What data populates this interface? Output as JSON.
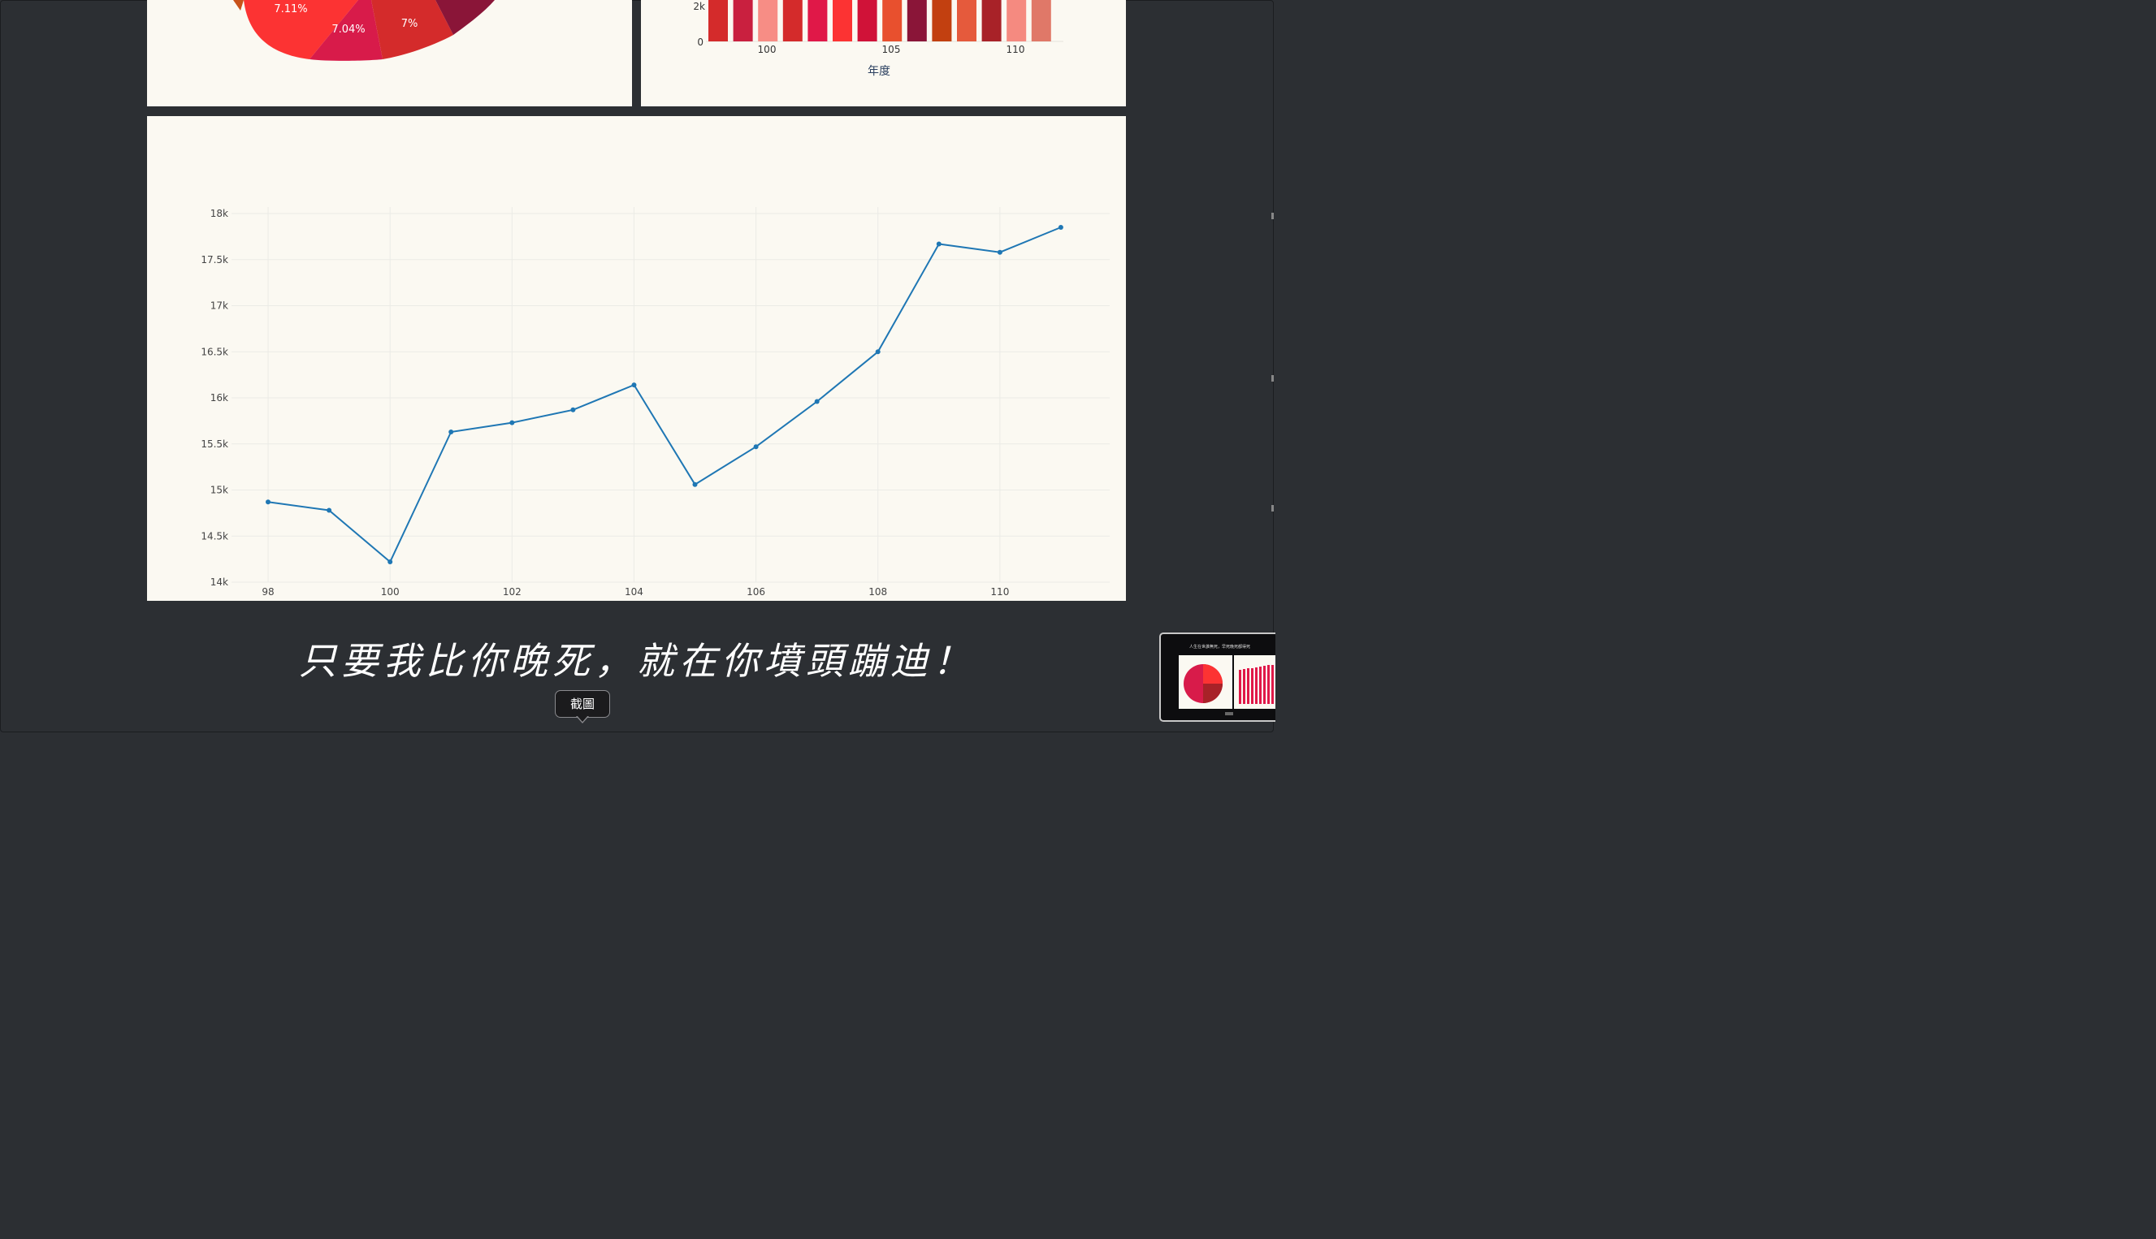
{
  "pie_chart": {
    "slice_labels": [
      "7.11%",
      "7.04%",
      "7%"
    ],
    "colors": [
      "#c8521a",
      "#fc3333",
      "#d81b4a",
      "#d42b2b",
      "#8a1538"
    ]
  },
  "bar_chart": {
    "y_ticks": [
      "2k",
      "0"
    ],
    "x_ticks": [
      "100",
      "105",
      "110"
    ],
    "xlabel": "年度",
    "bar_colors": [
      "#d42b2b",
      "#c9203f",
      "#f78d85",
      "#d42b2b",
      "#e01848",
      "#fc3333",
      "#d01238",
      "#e8502e",
      "#8a1538",
      "#c24010",
      "#e55a3c",
      "#a82228",
      "#f58a80",
      "#e07868"
    ]
  },
  "chart_data": {
    "type": "line",
    "x": [
      98,
      99,
      100,
      101,
      102,
      103,
      104,
      105,
      106,
      107,
      108,
      109,
      110,
      111
    ],
    "series": [
      {
        "values": [
          14870,
          14780,
          14220,
          15630,
          15730,
          15870,
          16140,
          15060,
          15470,
          15960,
          16500,
          17670,
          17580,
          17850
        ]
      }
    ],
    "x_ticks": [
      "98",
      "100",
      "102",
      "104",
      "106",
      "108",
      "110"
    ],
    "y_ticks": [
      "14k",
      "14.5k",
      "15k",
      "15.5k",
      "16k",
      "16.5k",
      "17k",
      "17.5k",
      "18k"
    ],
    "xlim": [
      97.4,
      111.8
    ],
    "ylim": [
      14000,
      18000
    ],
    "grid": true,
    "line_color": "#1f77b4"
  },
  "quote_text": "只要我比你晚死，就在你墳頭蹦迪！",
  "tooltip_text": "截圖",
  "thumbnail": {
    "title": "人生在世誰無死，早死晚死都得死"
  }
}
